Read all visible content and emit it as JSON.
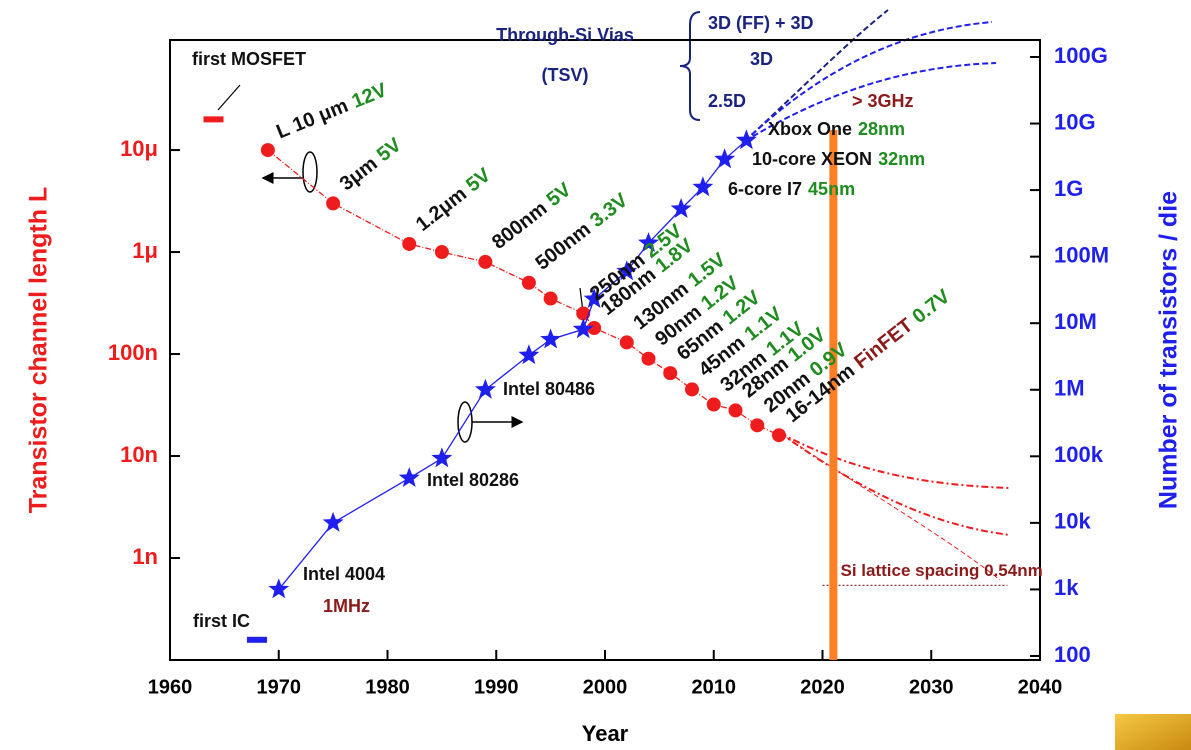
{
  "chart_data": {
    "type": "line",
    "xlabel": "Year",
    "ylabel": "Transistor channel length L",
    "y2label": "Number of transistors / die",
    "xlim": [
      1960,
      2040
    ],
    "xticks": [
      1960,
      1970,
      1980,
      1990,
      2000,
      2010,
      2020,
      2030,
      2040
    ],
    "ylim": [
      1e-10,
      0.00012
    ],
    "yticks": [
      {
        "value": 1e-09,
        "label": "1n"
      },
      {
        "value": 1e-08,
        "label": "10n"
      },
      {
        "value": 1e-07,
        "label": "100n"
      },
      {
        "value": 1e-06,
        "label": "1μ"
      },
      {
        "value": 1e-05,
        "label": "10μ"
      }
    ],
    "y2lim": [
      87,
      180000000000.0
    ],
    "y2ticks": [
      100,
      {
        "value": 1000.0,
        "label": "1k"
      },
      {
        "value": 10000.0,
        "label": "10k"
      },
      {
        "value": 100000.0,
        "label": "100k"
      },
      {
        "value": 1000000.0,
        "label": "1M"
      },
      {
        "value": 10000000.0,
        "label": "10M"
      },
      {
        "value": 100000000.0,
        "label": "100M"
      },
      {
        "value": 1000000000.0,
        "label": "1G"
      },
      {
        "value": 10000000000.0,
        "label": "10G"
      },
      {
        "value": 100000000000.0,
        "label": "100G"
      }
    ],
    "log_scale": true,
    "series": [
      {
        "color": "#ee1c1c",
        "axis": "y",
        "x": [
          1969,
          1975,
          1982,
          1985,
          1989,
          1993,
          1995,
          1998,
          1999,
          2002,
          2004,
          2006,
          2008,
          2010,
          2012,
          2014,
          2016
        ],
        "values": [
          1e-05,
          3e-06,
          1.2e-06,
          1e-06,
          8e-07,
          5e-07,
          3.5e-07,
          2.5e-07,
          1.8e-07,
          1.3e-07,
          9e-08,
          6.5e-08,
          4.5e-08,
          3.2e-08,
          2.8e-08,
          2e-08,
          1.6e-08
        ],
        "value_labels": [
          "L 10 μm",
          "3μm",
          "1.2μm",
          null,
          "800nm",
          "500nm",
          null,
          "250nm",
          "180nm",
          "130nm",
          "90nm",
          "65nm",
          "45nm",
          "32nm",
          "28nm",
          "20nm",
          "16-14nm"
        ],
        "voltage_labels": [
          "12V",
          "5V",
          "5V",
          null,
          "5V",
          "3.3V",
          null,
          "2.5V",
          "1.8V",
          "1.5V",
          "1.2V",
          "1.2V",
          "1.1V",
          "1.1V",
          "1.0V",
          "0.9V",
          "0.7V"
        ],
        "voltage_color": "#1e8c1e",
        "tech_label": "FinFET"
      },
      {
        "color": "#1f1fee",
        "axis": "y2",
        "x": [
          1970,
          1975,
          1982,
          1985,
          1989,
          1993,
          1995,
          1998,
          1999,
          2002,
          2004,
          2007,
          2009,
          2011,
          2013
        ],
        "values": [
          1000,
          10000,
          47000,
          93000,
          1000000,
          3300000,
          5700000,
          8100000,
          23000000,
          60000000,
          160000000,
          520000000,
          1100000000,
          2900000000,
          5600000000
        ]
      }
    ],
    "first_mosfet": {
      "text": "first MOSFET",
      "year": 1964,
      "value": 2e-05
    },
    "first_ic": {
      "text": "first IC",
      "year": 1968,
      "value": 175
    },
    "highlight_year": 2021,
    "lattice": {
      "label": "Si lattice spacing 0.54nm",
      "value": 5.4e-10,
      "from": 2020,
      "to": 2037
    },
    "annotations": [
      {
        "text": "Intel 4004",
        "color": "#111111"
      },
      {
        "text": "1MHz",
        "color": "#8b1a1a"
      },
      {
        "text": "Intel 80286",
        "color": "#111111"
      },
      {
        "text": "Intel 80486",
        "color": "#111111"
      },
      {
        "text": "Through-Si Vias",
        "color": "#1a237e"
      },
      {
        "text": "(TSV)",
        "color": "#1a237e"
      },
      {
        "text": "3D (FF) + 3D",
        "color": "#1a237e"
      },
      {
        "text": "3D",
        "color": "#1a237e"
      },
      {
        "text": "2.5D",
        "color": "#1a237e"
      },
      {
        "text": "> 3GHz",
        "color": "#8b1a1a"
      },
      {
        "text": "Xbox One",
        "detail": "28nm",
        "color": "#111111"
      },
      {
        "text": "10-core XEON",
        "detail": "32nm",
        "color": "#111111"
      },
      {
        "text": "6-core I7",
        "detail": "45nm",
        "color": "#111111"
      }
    ]
  }
}
